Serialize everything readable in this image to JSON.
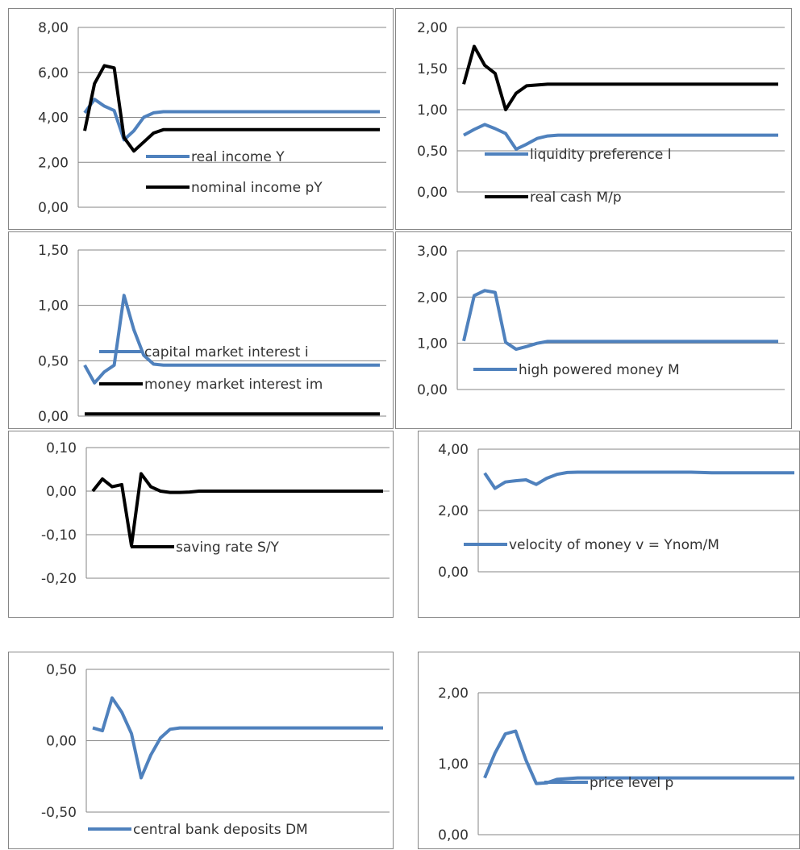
{
  "colors": {
    "blue": "#4f81bd",
    "black": "#000000",
    "grid": "#858585"
  },
  "chart_data": [
    {
      "type": "line",
      "ylim": [
        0,
        8
      ],
      "ticks": [
        "0,00",
        "2,00",
        "4,00",
        "6,00",
        "8,00"
      ],
      "series": [
        {
          "name": "real income Y",
          "color": "#4f81bd",
          "values": [
            4.2,
            4.8,
            4.5,
            4.3,
            3.0,
            3.4,
            4.0,
            4.2,
            4.25,
            4.25,
            4.25,
            4.25,
            4.25,
            4.25,
            4.25,
            4.25,
            4.25,
            4.25,
            4.25,
            4.25,
            4.25,
            4.25,
            4.25,
            4.25,
            4.25,
            4.25,
            4.25,
            4.25,
            4.25,
            4.25,
            4.25
          ]
        },
        {
          "name": "nominal income pY",
          "color": "#000000",
          "values": [
            3.4,
            5.5,
            6.3,
            6.2,
            3.1,
            2.5,
            2.9,
            3.3,
            3.45,
            3.45,
            3.45,
            3.45,
            3.45,
            3.45,
            3.45,
            3.45,
            3.45,
            3.45,
            3.45,
            3.45,
            3.45,
            3.45,
            3.45,
            3.45,
            3.45,
            3.45,
            3.45,
            3.45,
            3.45,
            3.45,
            3.45
          ]
        }
      ]
    },
    {
      "type": "line",
      "ylim": [
        0,
        2
      ],
      "ticks": [
        "0,00",
        "0,50",
        "1,00",
        "1,50",
        "2,00"
      ],
      "series": [
        {
          "name": "liquidity preference l",
          "color": "#4f81bd",
          "values": [
            0.69,
            0.76,
            0.82,
            0.77,
            0.71,
            0.52,
            0.58,
            0.65,
            0.68,
            0.69,
            0.69,
            0.69,
            0.69,
            0.69,
            0.69,
            0.69,
            0.69,
            0.69,
            0.69,
            0.69,
            0.69,
            0.69,
            0.69,
            0.69,
            0.69,
            0.69,
            0.69,
            0.69,
            0.69,
            0.69,
            0.69
          ]
        },
        {
          "name": "real cash M/p",
          "color": "#000000",
          "values": [
            1.31,
            1.77,
            1.54,
            1.44,
            1.0,
            1.2,
            1.29,
            1.3,
            1.31,
            1.31,
            1.31,
            1.31,
            1.31,
            1.31,
            1.31,
            1.31,
            1.31,
            1.31,
            1.31,
            1.31,
            1.31,
            1.31,
            1.31,
            1.31,
            1.31,
            1.31,
            1.31,
            1.31,
            1.31,
            1.31,
            1.31
          ]
        }
      ]
    },
    {
      "type": "line",
      "ylim": [
        0,
        1.5
      ],
      "ticks": [
        "0,00",
        "0,50",
        "1,00",
        "1,50"
      ],
      "series": [
        {
          "name": "capital market interest  i",
          "color": "#4f81bd",
          "values": [
            0.46,
            0.3,
            0.4,
            0.46,
            1.09,
            0.78,
            0.55,
            0.47,
            0.46,
            0.46,
            0.46,
            0.46,
            0.46,
            0.46,
            0.46,
            0.46,
            0.46,
            0.46,
            0.46,
            0.46,
            0.46,
            0.46,
            0.46,
            0.46,
            0.46,
            0.46,
            0.46,
            0.46,
            0.46,
            0.46,
            0.46
          ]
        },
        {
          "name": "money market interest im",
          "color": "#000000",
          "values": [
            0.02,
            0.02,
            0.02,
            0.02,
            0.02,
            0.02,
            0.02,
            0.02,
            0.02,
            0.02,
            0.02,
            0.02,
            0.02,
            0.02,
            0.02,
            0.02,
            0.02,
            0.02,
            0.02,
            0.02,
            0.02,
            0.02,
            0.02,
            0.02,
            0.02,
            0.02,
            0.02,
            0.02,
            0.02,
            0.02,
            0.02
          ]
        }
      ]
    },
    {
      "type": "line",
      "ylim": [
        0,
        3
      ],
      "ticks": [
        "0,00",
        "1,00",
        "2,00",
        "3,00"
      ],
      "series": [
        {
          "name": "high powered money M",
          "color": "#4f81bd",
          "values": [
            1.05,
            2.03,
            2.14,
            2.1,
            1.02,
            0.87,
            0.93,
            1.0,
            1.04,
            1.04,
            1.04,
            1.04,
            1.04,
            1.04,
            1.04,
            1.04,
            1.04,
            1.04,
            1.04,
            1.04,
            1.04,
            1.04,
            1.04,
            1.04,
            1.04,
            1.04,
            1.04,
            1.04,
            1.04,
            1.04,
            1.04
          ]
        }
      ]
    },
    {
      "type": "line",
      "ylim": [
        -0.2,
        0.1
      ],
      "ticks": [
        "-0,20",
        "-0,10",
        "0,00",
        "0,10"
      ],
      "series": [
        {
          "name": "saving rate S/Y",
          "color": "#000000",
          "values": [
            0.0,
            0.028,
            0.01,
            0.015,
            -0.125,
            0.04,
            0.01,
            0.0,
            -0.003,
            -0.003,
            -0.002,
            0.0,
            0.0,
            0.0,
            0.0,
            0.0,
            0.0,
            0.0,
            0.0,
            0.0,
            0.0,
            0.0,
            0.0,
            0.0,
            0.0,
            0.0,
            0.0,
            0.0,
            0.0,
            0.0,
            0.0
          ]
        }
      ]
    },
    {
      "type": "line",
      "ylim": [
        0,
        4
      ],
      "ticks": [
        "0,00",
        "2,00",
        "4,00"
      ],
      "series": [
        {
          "name": "velocity of money v = Ynom/M",
          "color": "#4f81bd",
          "values": [
            3.22,
            2.72,
            2.93,
            2.97,
            3.0,
            2.85,
            3.05,
            3.18,
            3.24,
            3.25,
            3.25,
            3.25,
            3.25,
            3.25,
            3.25,
            3.25,
            3.25,
            3.25,
            3.25,
            3.25,
            3.25,
            3.24,
            3.23,
            3.23,
            3.23,
            3.23,
            3.23,
            3.23,
            3.23,
            3.23,
            3.23
          ]
        }
      ]
    },
    {
      "type": "line",
      "ylim": [
        -0.5,
        0.5
      ],
      "ticks": [
        "-0,50",
        "0,00",
        "0,50"
      ],
      "series": [
        {
          "name": "central bank deposits DM",
          "color": "#4f81bd",
          "values": [
            0.09,
            0.07,
            0.3,
            0.2,
            0.05,
            -0.26,
            -0.1,
            0.02,
            0.08,
            0.09,
            0.09,
            0.09,
            0.09,
            0.09,
            0.09,
            0.09,
            0.09,
            0.09,
            0.09,
            0.09,
            0.09,
            0.09,
            0.09,
            0.09,
            0.09,
            0.09,
            0.09,
            0.09,
            0.09,
            0.09,
            0.09
          ]
        }
      ]
    },
    {
      "type": "line",
      "ylim": [
        0,
        2
      ],
      "ticks": [
        "0,00",
        "1,00",
        "2,00"
      ],
      "series": [
        {
          "name": "price level p",
          "color": "#4f81bd",
          "values": [
            0.8,
            1.15,
            1.42,
            1.46,
            1.05,
            0.72,
            0.73,
            0.78,
            0.79,
            0.8,
            0.8,
            0.8,
            0.8,
            0.8,
            0.8,
            0.8,
            0.8,
            0.8,
            0.8,
            0.8,
            0.8,
            0.8,
            0.8,
            0.8,
            0.8,
            0.8,
            0.8,
            0.8,
            0.8,
            0.8,
            0.8
          ]
        }
      ]
    }
  ]
}
